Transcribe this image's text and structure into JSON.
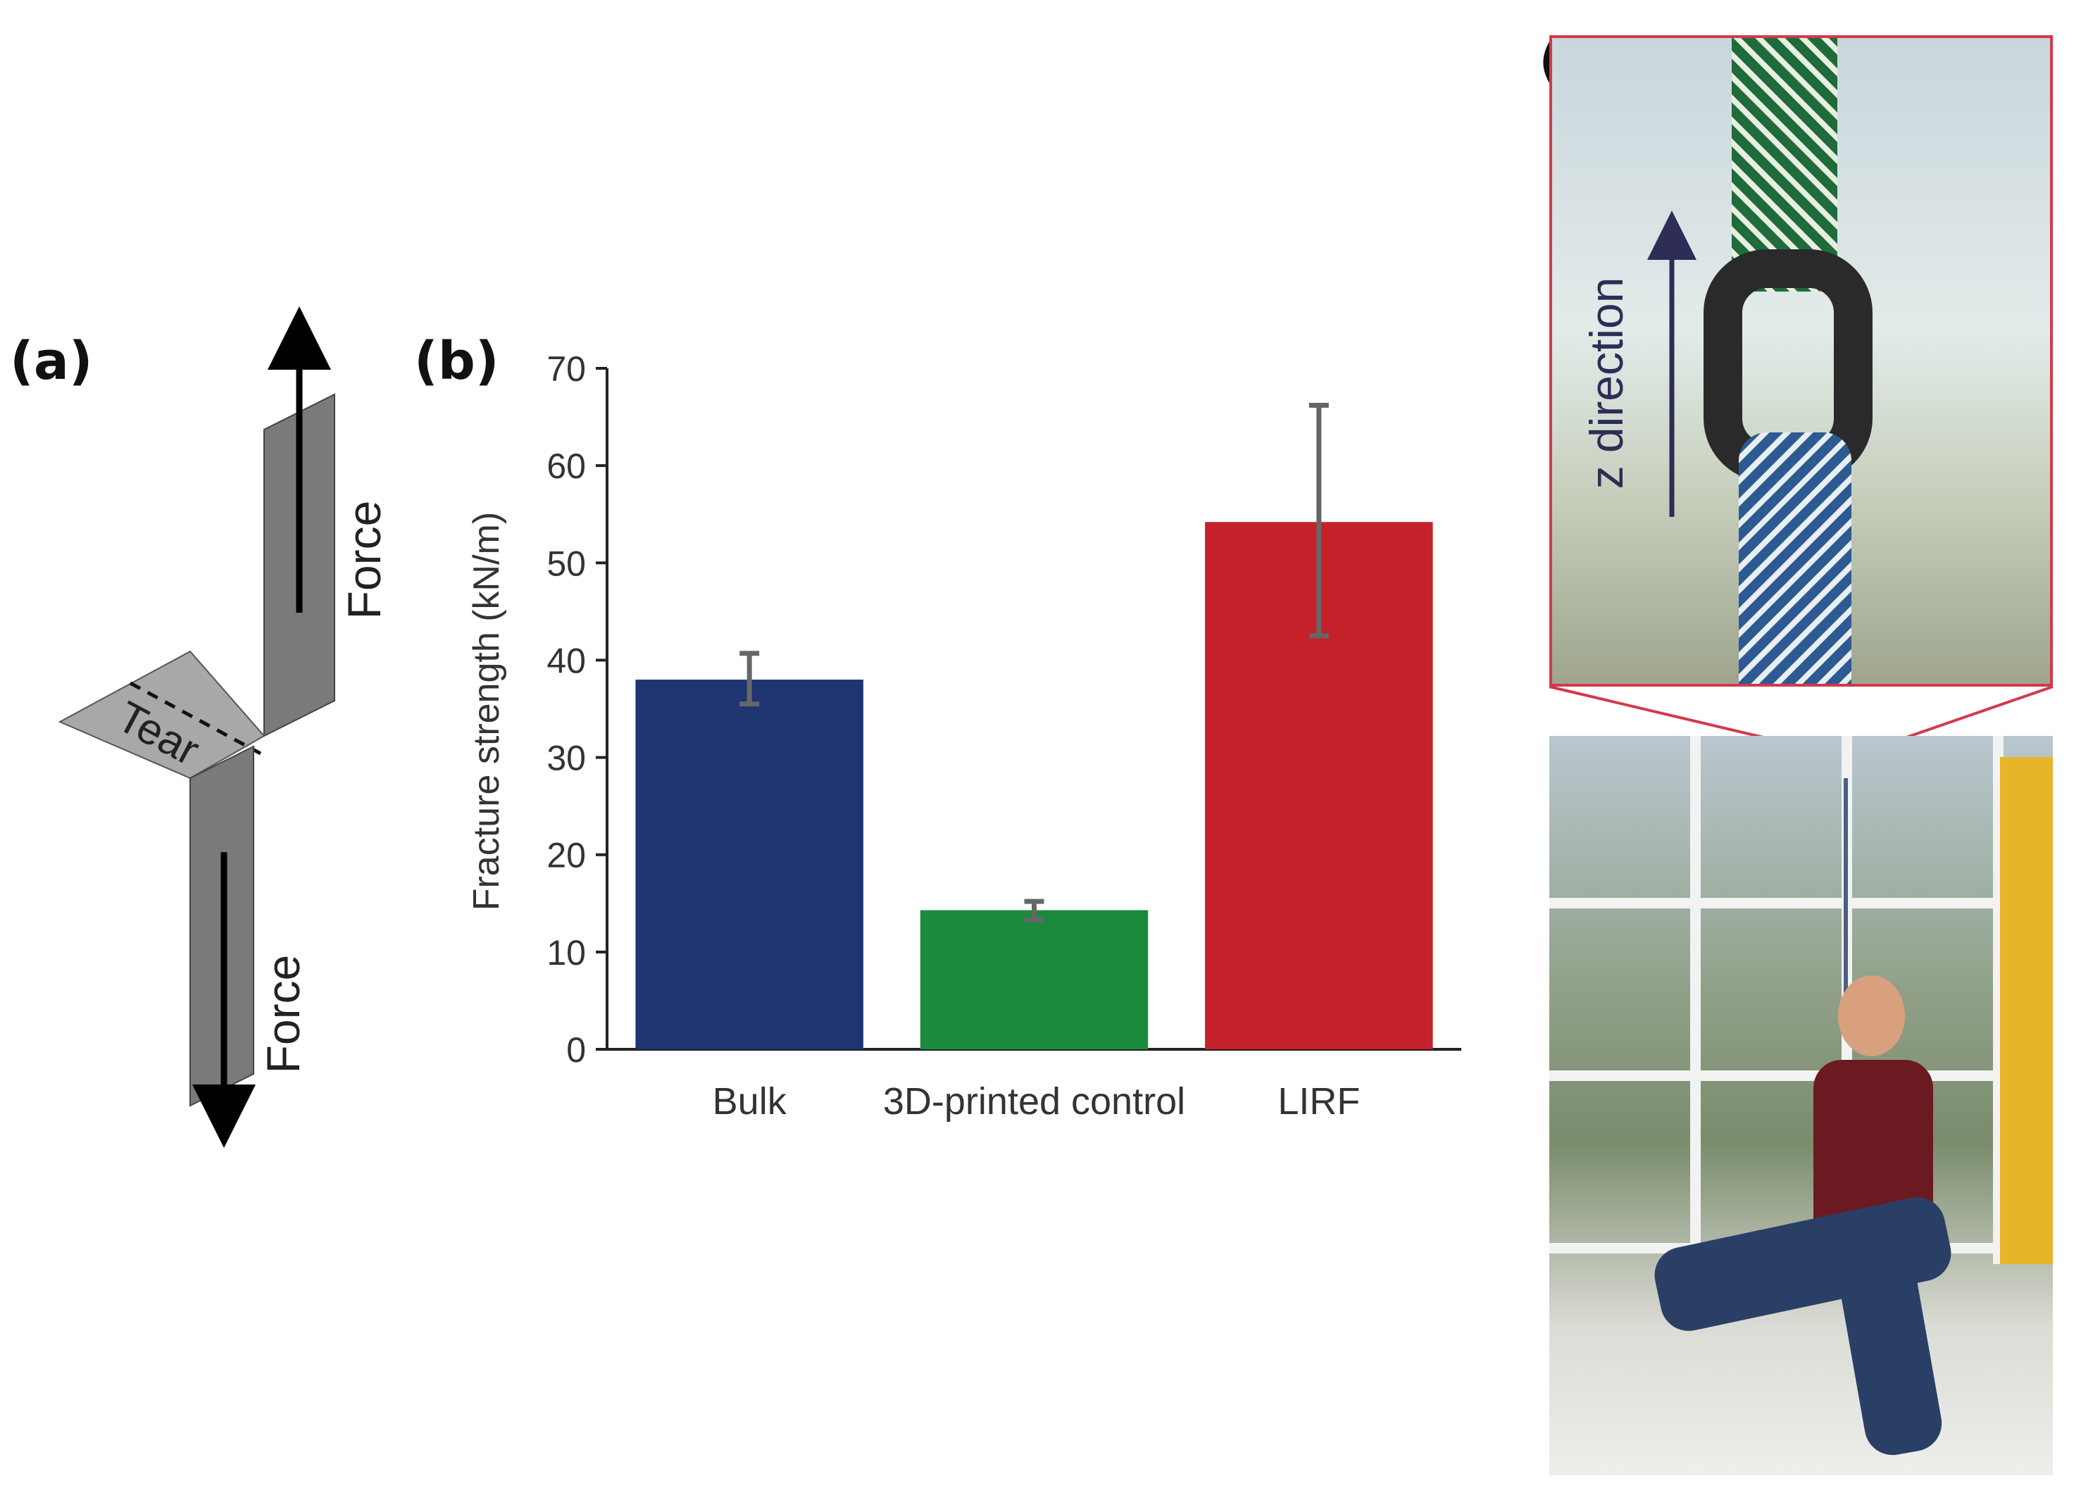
{
  "figure": {
    "panel_a": {
      "label": "(a)",
      "force_top": "Force",
      "force_bottom": "Force",
      "tear": "Tear"
    },
    "panel_b": {
      "label": "(b)"
    },
    "panel_c": {
      "label": "(c)",
      "z_direction": "z direction"
    }
  },
  "chart_data": {
    "type": "bar",
    "categories": [
      "Bulk",
      "3D-printed control",
      "LIRF"
    ],
    "values": [
      38,
      14.3,
      54.2
    ],
    "error_low": [
      35.5,
      13.3,
      42.5
    ],
    "error_high": [
      40.7,
      15.2,
      66.2
    ],
    "colors": [
      "#1f3571",
      "#1c8a3c",
      "#c4212a"
    ],
    "title": "",
    "xlabel": "",
    "ylabel": "Fracture strength (kN/m)",
    "ylim": [
      0,
      70
    ],
    "yticks": [
      0,
      10,
      20,
      30,
      40,
      50,
      60,
      70
    ],
    "grid": false
  }
}
